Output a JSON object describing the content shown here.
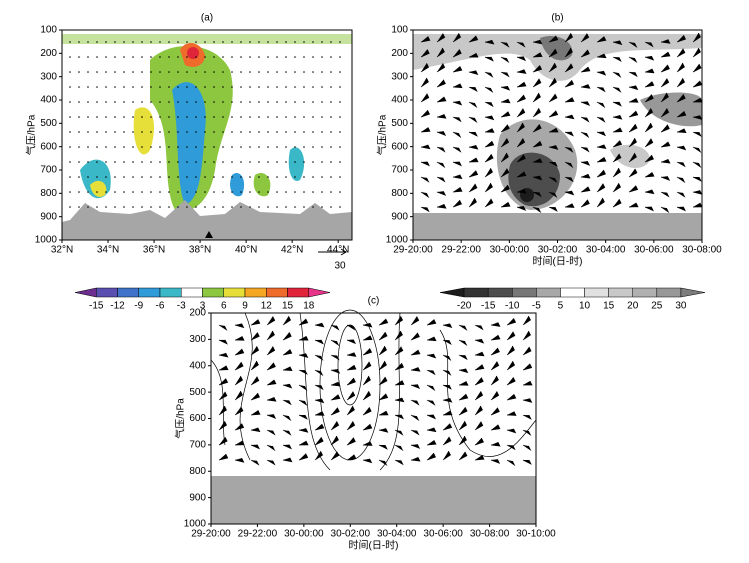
{
  "chart_data": [
    {
      "type": "contour",
      "title": "(a)",
      "ylabel": "气压/hPa",
      "xlim": [
        32,
        44.6
      ],
      "xticks": [
        {
          "value": 32,
          "label": "32°N"
        },
        {
          "value": 34,
          "label": "34°N"
        },
        {
          "value": 36,
          "label": "36°N"
        },
        {
          "value": 38,
          "label": "38°N"
        },
        {
          "value": 40,
          "label": "40°N"
        },
        {
          "value": 42,
          "label": "42°N"
        },
        {
          "value": 44,
          "label": "44°N"
        }
      ],
      "ylim": [
        1000,
        100
      ],
      "yticks": [
        100,
        200,
        300,
        400,
        500,
        600,
        700,
        800,
        900,
        1000
      ],
      "wind_reference": "30",
      "colorbar": {
        "ticks": [
          -15,
          -12,
          -9,
          -6,
          -3,
          3,
          6,
          9,
          12,
          15,
          18
        ],
        "colors": [
          "#6b2d8f",
          "#5a4fb0",
          "#3f72c8",
          "#2f9bd8",
          "#3bb8c8",
          "#ffffff",
          "#8dc63f",
          "#e6df3a",
          "#f5a623",
          "#ef6b2b",
          "#e0243a",
          "#e8338a"
        ]
      }
    },
    {
      "type": "contour",
      "title": "(b)",
      "ylabel": "气压/hPa",
      "xlabel": "时间(日-时)",
      "xlim": [
        0,
        12
      ],
      "xticks": [
        {
          "value": 0,
          "label": "29-20:00"
        },
        {
          "value": 2,
          "label": "29-22:00"
        },
        {
          "value": 4,
          "label": "30-00:00"
        },
        {
          "value": 6,
          "label": "30-02:00"
        },
        {
          "value": 8,
          "label": "30-04:00"
        },
        {
          "value": 10,
          "label": "30-06:00"
        },
        {
          "value": 12,
          "label": "30-08:00"
        }
      ],
      "ylim": [
        1000,
        100
      ],
      "yticks": [
        100,
        200,
        300,
        400,
        500,
        600,
        700,
        800,
        900,
        1000
      ],
      "colorbar": {
        "ticks": [
          -20,
          -15,
          -10,
          -5,
          5,
          10,
          15,
          20,
          25,
          30
        ],
        "colors": [
          "#1c1c1c",
          "#333333",
          "#4d4d4d",
          "#777777",
          "#a8a8a8",
          "#ffffff",
          "#e0e0e0",
          "#c8c8c8",
          "#b0b0b0",
          "#989898",
          "#7c7c7c"
        ]
      }
    },
    {
      "type": "contour",
      "title": "(c)",
      "ylabel": "气压/hPa",
      "xlabel": "时间(日-时)",
      "xlim": [
        0,
        14
      ],
      "xticks": [
        {
          "value": 0,
          "label": "29-20:00"
        },
        {
          "value": 2,
          "label": "29-22:00"
        },
        {
          "value": 4,
          "label": "30-00:00"
        },
        {
          "value": 6,
          "label": "30-02:00"
        },
        {
          "value": 8,
          "label": "30-04:00"
        },
        {
          "value": 10,
          "label": "30-06:00"
        },
        {
          "value": 12,
          "label": "30-08:00"
        },
        {
          "value": 14,
          "label": "30-10:00"
        }
      ],
      "ylim": [
        1000,
        200
      ],
      "yticks": [
        200,
        300,
        400,
        500,
        600,
        700,
        800,
        900,
        1000
      ]
    }
  ]
}
